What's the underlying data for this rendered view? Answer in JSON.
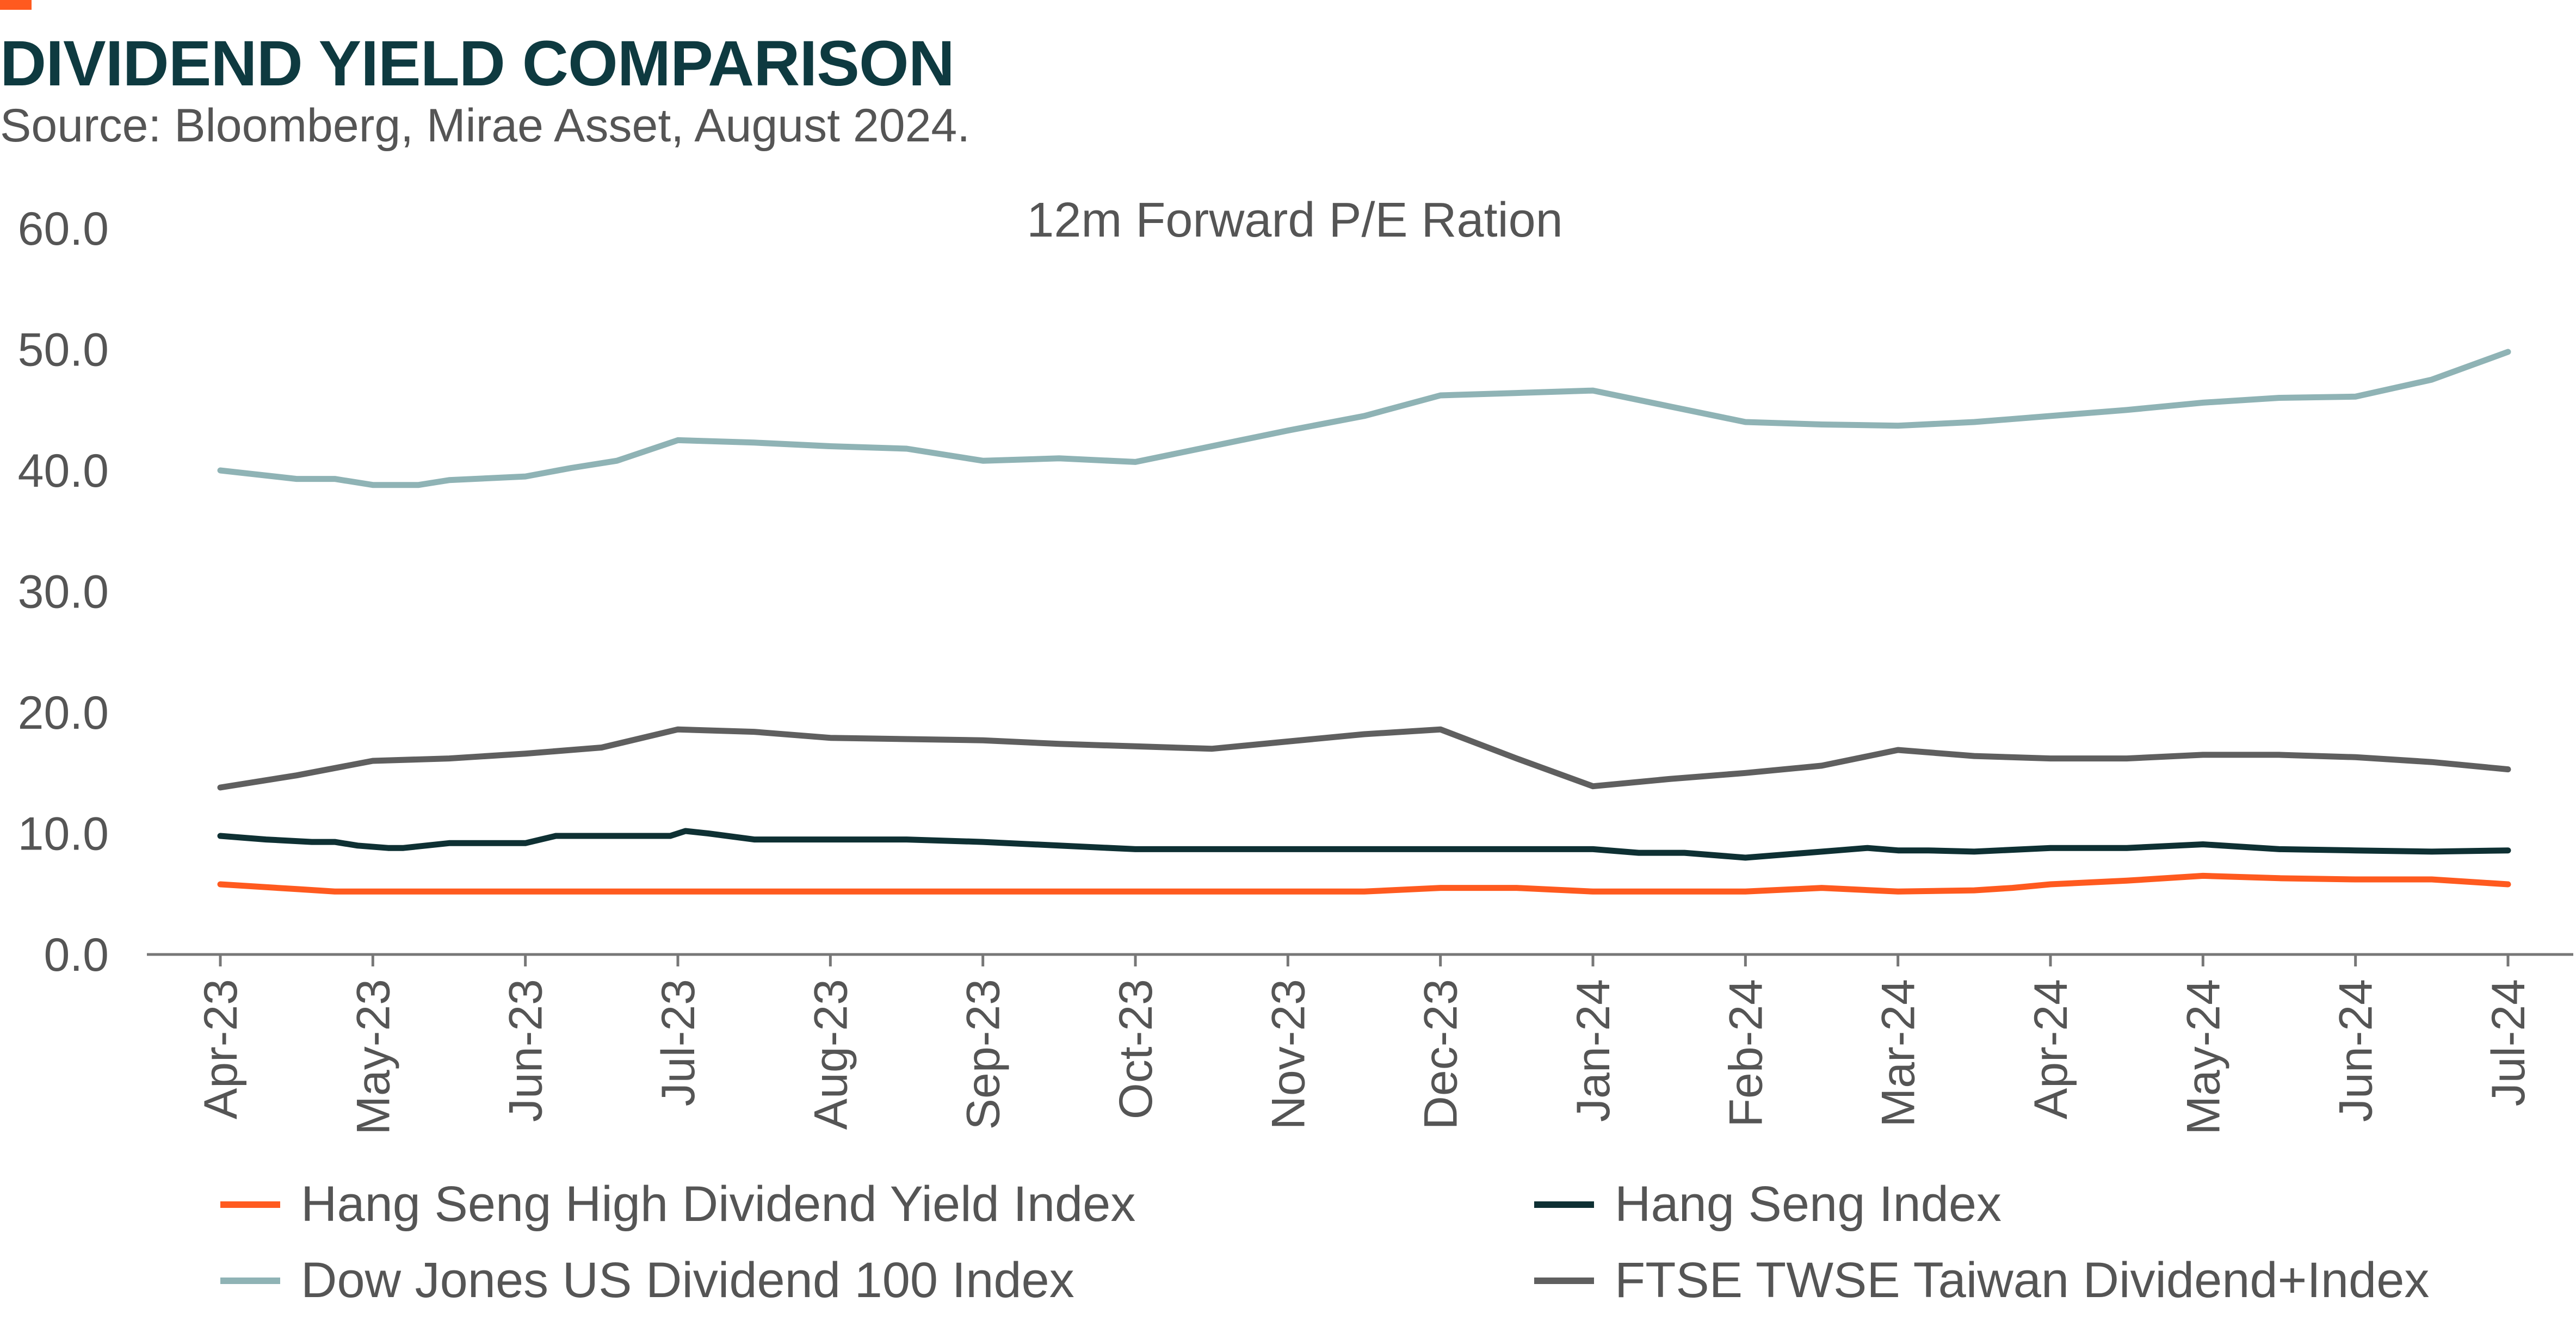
{
  "header": {
    "title": "DIVIDEND YIELD COMPARISON",
    "source": "Source: Bloomberg, Mirae Asset, August 2024."
  },
  "colors": {
    "accent": "#ff5a1f",
    "title": "#0e3a40",
    "text": "#555555",
    "axis": "#777777"
  },
  "chart_data": {
    "type": "line",
    "title": "12m Forward P/E Ration",
    "xlabel": "",
    "ylabel": "",
    "ylim": [
      0,
      60
    ],
    "yticks": [
      "0.0",
      "10.0",
      "20.0",
      "30.0",
      "40.0",
      "50.0",
      "60.0"
    ],
    "grid": false,
    "legend_position": "bottom",
    "categories": [
      "Apr-23",
      "May-23",
      "Jun-23",
      "Jul-23",
      "Aug-23",
      "Sep-23",
      "Oct-23",
      "Nov-23",
      "Dec-23",
      "Jan-24",
      "Feb-24",
      "Mar-24",
      "Apr-24",
      "May-24",
      "Jun-24",
      "Jul-24"
    ],
    "series": [
      {
        "name": "Hang Seng High Dividend Yield Index",
        "color": "#ff5a1f",
        "x": [
          0,
          0.5,
          0.75,
          1,
          1.5,
          2,
          2.5,
          3,
          3.5,
          4,
          4.5,
          5,
          5.5,
          6,
          6.5,
          7,
          7.5,
          8,
          8.5,
          9,
          9.5,
          10,
          10.5,
          11,
          11.5,
          11.75,
          12,
          12.5,
          13,
          13.5,
          14,
          14.5,
          15
        ],
        "values": [
          5.8,
          5.4,
          5.2,
          5.2,
          5.2,
          5.2,
          5.2,
          5.2,
          5.2,
          5.2,
          5.2,
          5.2,
          5.2,
          5.2,
          5.2,
          5.2,
          5.2,
          5.5,
          5.5,
          5.2,
          5.2,
          5.2,
          5.5,
          5.2,
          5.3,
          5.5,
          5.8,
          6.1,
          6.5,
          6.3,
          6.2,
          6.2,
          5.8
        ]
      },
      {
        "name": "Hang Seng Index",
        "color": "#0e3033",
        "x": [
          0,
          0.3,
          0.6,
          0.75,
          0.9,
          1.1,
          1.2,
          1.5,
          2,
          2.2,
          2.5,
          2.95,
          3.05,
          3.2,
          3.5,
          4,
          4.5,
          5,
          5.5,
          6,
          6.5,
          7,
          7.5,
          8,
          8.5,
          9,
          9.3,
          9.6,
          10,
          10.4,
          10.6,
          10.8,
          11,
          11.2,
          11.5,
          12,
          12.5,
          13,
          13.5,
          14,
          14.5,
          15
        ],
        "values": [
          9.8,
          9.5,
          9.3,
          9.3,
          9.0,
          8.8,
          8.8,
          9.2,
          9.2,
          9.8,
          9.8,
          9.8,
          10.2,
          10.0,
          9.5,
          9.5,
          9.5,
          9.3,
          9.0,
          8.7,
          8.7,
          8.7,
          8.7,
          8.7,
          8.7,
          8.7,
          8.4,
          8.4,
          8.0,
          8.4,
          8.6,
          8.8,
          8.6,
          8.6,
          8.5,
          8.8,
          8.8,
          9.1,
          8.7,
          8.6,
          8.5,
          8.6
        ]
      },
      {
        "name": "Dow Jones US Dividend 100 Index",
        "color": "#8fb3b5",
        "x": [
          0,
          0.5,
          0.75,
          1,
          1.3,
          1.5,
          2,
          2.3,
          2.6,
          3,
          3.5,
          4,
          4.5,
          5,
          5.5,
          6,
          6.5,
          7,
          7.5,
          8,
          8.5,
          9,
          9.5,
          10,
          10.5,
          11,
          11.5,
          12,
          12.5,
          13,
          13.5,
          14,
          14.5,
          15
        ],
        "values": [
          40.0,
          39.3,
          39.3,
          38.8,
          38.8,
          39.2,
          39.5,
          40.2,
          40.8,
          42.5,
          42.3,
          42.0,
          41.8,
          40.8,
          41.0,
          40.7,
          42.0,
          43.3,
          44.5,
          46.2,
          46.4,
          46.6,
          45.3,
          44.0,
          43.8,
          43.7,
          44.0,
          44.5,
          45.0,
          45.6,
          46.0,
          46.1,
          47.5,
          49.8
        ]
      },
      {
        "name": "FTSE TWSE Taiwan Dividend+Index",
        "color": "#5f5f5f",
        "x": [
          0,
          0.5,
          1,
          1.5,
          2,
          2.5,
          3,
          3.5,
          4,
          4.5,
          5,
          5.5,
          6,
          6.5,
          7,
          7.5,
          8,
          8.5,
          9,
          9.5,
          10,
          10.5,
          11,
          11.5,
          12,
          12.5,
          13,
          13.5,
          14,
          14.5,
          15
        ],
        "values": [
          13.8,
          14.8,
          16.0,
          16.2,
          16.6,
          17.1,
          18.6,
          18.4,
          17.9,
          17.8,
          17.7,
          17.4,
          17.2,
          17.0,
          17.6,
          18.2,
          18.6,
          16.2,
          13.9,
          14.5,
          15.0,
          15.6,
          16.9,
          16.4,
          16.2,
          16.2,
          16.5,
          16.5,
          16.3,
          15.9,
          15.3
        ]
      }
    ]
  }
}
